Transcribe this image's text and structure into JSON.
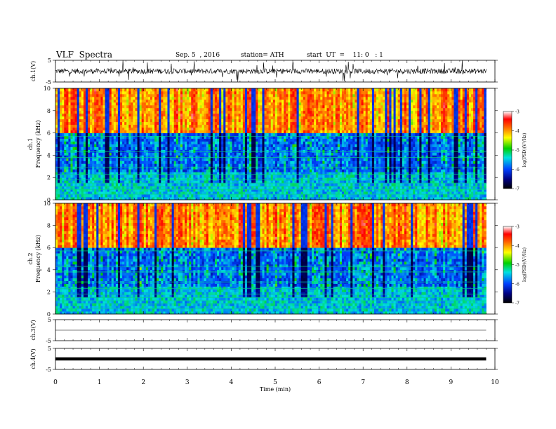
{
  "header": {
    "title": "VLF  Spectra",
    "date": "Sep. 5  , 2016",
    "station": "station= ATH",
    "start": "start  UT  =    11: 0   : 1"
  },
  "colors": {
    "spectro_low": "#000000",
    "spectro_mid_blue": "#0030ff",
    "spectro_cyan": "#00e5e5",
    "spectro_green": "#00d000",
    "spectro_yellow": "#ffe800",
    "spectro_red": "#ff1000",
    "spectro_high": "#ffffff"
  },
  "chart_data": [
    {
      "type": "line",
      "name": "ch1-waveform",
      "ylabel": "ch.1(V)",
      "ylim": [
        -5,
        5
      ],
      "yticks": [
        "5",
        "-5"
      ],
      "xlim": [
        0,
        10
      ]
    },
    {
      "type": "heatmap",
      "name": "ch1-spectrogram",
      "ylabel": "ch.1 Frequency (kHz)",
      "ylim": [
        0,
        10
      ],
      "yticks": [
        "0",
        "2",
        "4",
        "6",
        "8",
        "10"
      ],
      "xlim": [
        0,
        9.8
      ],
      "colorbar": {
        "label": "log(PSD)(V²/Hz)",
        "range": [
          -7,
          -3
        ],
        "ticks": [
          "-3",
          "-4",
          "-5",
          "-6",
          "-7"
        ]
      }
    },
    {
      "type": "heatmap",
      "name": "ch2-spectrogram",
      "ylabel": "ch.2 Frequency (kHz)",
      "ylim": [
        0,
        10
      ],
      "yticks": [
        "0",
        "2",
        "4",
        "6",
        "8",
        "10"
      ],
      "xlim": [
        0,
        9.8
      ],
      "colorbar": {
        "label": "log(PSD)(V²/Hz)",
        "range": [
          -7,
          -3
        ],
        "ticks": [
          "-3",
          "-4",
          "-5",
          "-6",
          "-7"
        ]
      }
    },
    {
      "type": "line",
      "name": "ch3-waveform",
      "ylabel": "ch.3(V)",
      "ylim": [
        -5,
        5
      ],
      "yticks": [
        "5",
        "-5"
      ],
      "xlim": [
        0,
        10
      ]
    },
    {
      "type": "line",
      "name": "ch4-waveform",
      "ylabel": "ch.4(V)",
      "ylim": [
        -5,
        5
      ],
      "yticks": [
        "5",
        "-5"
      ],
      "xlim": [
        0,
        10
      ]
    }
  ],
  "xaxis": {
    "label": "Time  (min)",
    "ticks": [
      "0",
      "1",
      "2",
      "3",
      "4",
      "5",
      "6",
      "7",
      "8",
      "9",
      "10"
    ]
  }
}
